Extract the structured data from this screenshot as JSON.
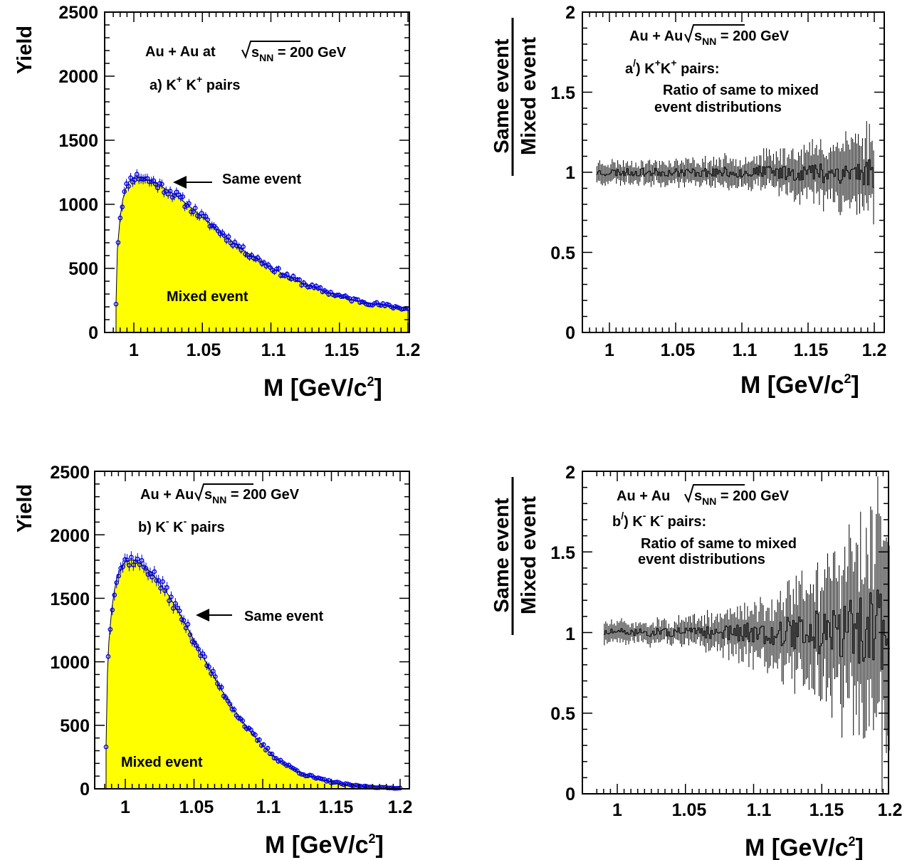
{
  "chart_data": [
    {
      "panel": "a",
      "type": "line",
      "xlim": [
        0.983,
        1.2
      ],
      "ylim": [
        0,
        2500
      ],
      "xticks": [
        "1",
        "1.05",
        "1.1",
        "1.15",
        "1.2"
      ],
      "yticks": [
        "0",
        "500",
        "1000",
        "1500",
        "2000",
        "2500"
      ],
      "xlabel": "M [GeV/c2]",
      "ylabel": "Yield",
      "annotations": {
        "system_prefix": "Au + Au at",
        "sqrt_s": "s",
        "sub": "NN",
        "energy": "= 200 GeV",
        "pair_prefix": "a) K",
        "sup1": "+",
        "pair_mid": " K",
        "sup2": "+",
        "pair_suffix": " pairs",
        "same_label": "Same event",
        "mixed_label": "Mixed event"
      },
      "series": [
        {
          "name": "Same event",
          "x": [
            0.987,
            0.988,
            0.99,
            0.992,
            0.994,
            0.996,
            0.998,
            1.0,
            1.003,
            1.006,
            1.01,
            1.015,
            1.02,
            1.03,
            1.04,
            1.05,
            1.06,
            1.07,
            1.08,
            1.09,
            1.1,
            1.11,
            1.12,
            1.13,
            1.14,
            1.15,
            1.16,
            1.17,
            1.18,
            1.19,
            1.2
          ],
          "y": [
            230,
            650,
            900,
            1040,
            1120,
            1170,
            1195,
            1210,
            1215,
            1210,
            1190,
            1170,
            1140,
            1075,
            990,
            900,
            810,
            725,
            640,
            575,
            510,
            450,
            400,
            355,
            320,
            285,
            255,
            235,
            215,
            200,
            185
          ]
        },
        {
          "name": "Mixed event",
          "x": [
            0.987,
            0.988,
            0.99,
            0.992,
            0.994,
            0.996,
            0.998,
            1.0,
            1.003,
            1.006,
            1.01,
            1.015,
            1.02,
            1.03,
            1.04,
            1.05,
            1.06,
            1.07,
            1.08,
            1.09,
            1.1,
            1.11,
            1.12,
            1.13,
            1.14,
            1.15,
            1.16,
            1.17,
            1.18,
            1.19,
            1.2
          ],
          "y": [
            230,
            650,
            900,
            1040,
            1120,
            1170,
            1195,
            1210,
            1215,
            1210,
            1190,
            1170,
            1140,
            1075,
            990,
            900,
            810,
            725,
            640,
            575,
            510,
            450,
            400,
            355,
            320,
            285,
            255,
            235,
            215,
            200,
            185
          ]
        }
      ]
    },
    {
      "panel": "a'",
      "type": "line",
      "xlim": [
        0.983,
        1.2
      ],
      "ylim": [
        0,
        2
      ],
      "xticks": [
        "1",
        "1.05",
        "1.1",
        "1.15",
        "1.2"
      ],
      "yticks": [
        "0",
        "0.5",
        "1",
        "1.5",
        "2"
      ],
      "xlabel": "M [GeV/c2]",
      "ylabel_num": "Same event",
      "ylabel_den": "Mixed event",
      "annotations": {
        "system_prefix": "Au + Au",
        "sqrt_s": "s",
        "sub": "NN",
        "energy": "= 200 GeV",
        "pair_prefix": "a",
        "prime": "/",
        "pair_mid1": ") K",
        "sup1": "+",
        "pair_mid2": "K",
        "sup2": "+",
        "pair_suffix": " pairs:",
        "desc1": "Ratio of same to mixed",
        "desc2": "event distributions"
      },
      "series": [
        {
          "name": "Ratio",
          "x": [
            0.99,
            1.2
          ],
          "y": [
            1.0,
            1.0
          ],
          "spread_low": [
            0.05,
            0.05
          ],
          "spread_high": [
            0.05,
            0.2
          ]
        }
      ]
    },
    {
      "panel": "b",
      "type": "line",
      "xlim": [
        0.983,
        1.2
      ],
      "ylim": [
        0,
        2500
      ],
      "xticks": [
        "1",
        "1.05",
        "1.1",
        "1.15",
        "1.2"
      ],
      "yticks": [
        "0",
        "500",
        "1000",
        "1500",
        "2000",
        "2500"
      ],
      "xlabel": "M [GeV/c2]",
      "ylabel": "Yield",
      "annotations": {
        "system_prefix": "Au + Au",
        "sqrt_s": "s",
        "sub": "NN",
        "energy": "= 200 GeV",
        "pair_prefix": "b) K",
        "sup1": "-",
        "pair_mid": " K",
        "sup2": "-",
        "pair_suffix": " pairs",
        "same_label": "Same event",
        "mixed_label": "Mixed event"
      },
      "series": [
        {
          "name": "Same event",
          "x": [
            0.986,
            0.987,
            0.988,
            0.99,
            0.992,
            0.994,
            0.996,
            0.998,
            1.0,
            1.003,
            1.006,
            1.01,
            1.015,
            1.02,
            1.03,
            1.04,
            1.05,
            1.06,
            1.07,
            1.08,
            1.09,
            1.1,
            1.11,
            1.12,
            1.13,
            1.14,
            1.15,
            1.16,
            1.17,
            1.18,
            1.19,
            1.2
          ],
          "y": [
            340,
            900,
            1150,
            1400,
            1560,
            1660,
            1720,
            1760,
            1790,
            1800,
            1800,
            1780,
            1740,
            1690,
            1550,
            1370,
            1170,
            970,
            780,
            610,
            460,
            340,
            240,
            170,
            115,
            80,
            55,
            35,
            22,
            14,
            8,
            5
          ]
        },
        {
          "name": "Mixed event",
          "x": [
            0.986,
            0.987,
            0.988,
            0.99,
            0.992,
            0.994,
            0.996,
            0.998,
            1.0,
            1.003,
            1.006,
            1.01,
            1.015,
            1.02,
            1.03,
            1.04,
            1.05,
            1.06,
            1.07,
            1.08,
            1.09,
            1.1,
            1.11,
            1.12,
            1.13,
            1.14,
            1.15,
            1.16,
            1.17,
            1.18,
            1.19,
            1.2
          ],
          "y": [
            340,
            900,
            1150,
            1400,
            1560,
            1660,
            1720,
            1760,
            1790,
            1800,
            1800,
            1780,
            1740,
            1690,
            1550,
            1370,
            1170,
            970,
            780,
            610,
            460,
            340,
            240,
            170,
            115,
            80,
            55,
            35,
            22,
            14,
            8,
            5
          ]
        }
      ]
    },
    {
      "panel": "b'",
      "type": "line",
      "xlim": [
        0.983,
        1.2
      ],
      "ylim": [
        0,
        2
      ],
      "xticks": [
        "1",
        "1.05",
        "1.1",
        "1.15",
        "1.2"
      ],
      "yticks": [
        "0",
        "0.5",
        "1",
        "1.5",
        "2"
      ],
      "xlabel": "M [GeV/c2]",
      "ylabel_num": "Same event",
      "ylabel_den": "Mixed event",
      "annotations": {
        "system_prefix": "Au + Au",
        "sqrt_s": "s",
        "sub": "NN",
        "energy": "= 200 GeV",
        "pair_prefix": "b",
        "prime": "/",
        "pair_mid1": ") K",
        "sup1": "-",
        "pair_mid2": " K",
        "sup2": "-",
        "pair_suffix": " pairs:",
        "desc1": "Ratio of same to mixed",
        "desc2": "event distributions"
      },
      "series": [
        {
          "name": "Ratio",
          "x": [
            0.99,
            1.2
          ],
          "y": [
            1.0,
            1.0
          ],
          "spread_low": [
            0.05,
            0.6
          ],
          "spread_high": [
            0.05,
            0.6
          ]
        }
      ]
    }
  ]
}
